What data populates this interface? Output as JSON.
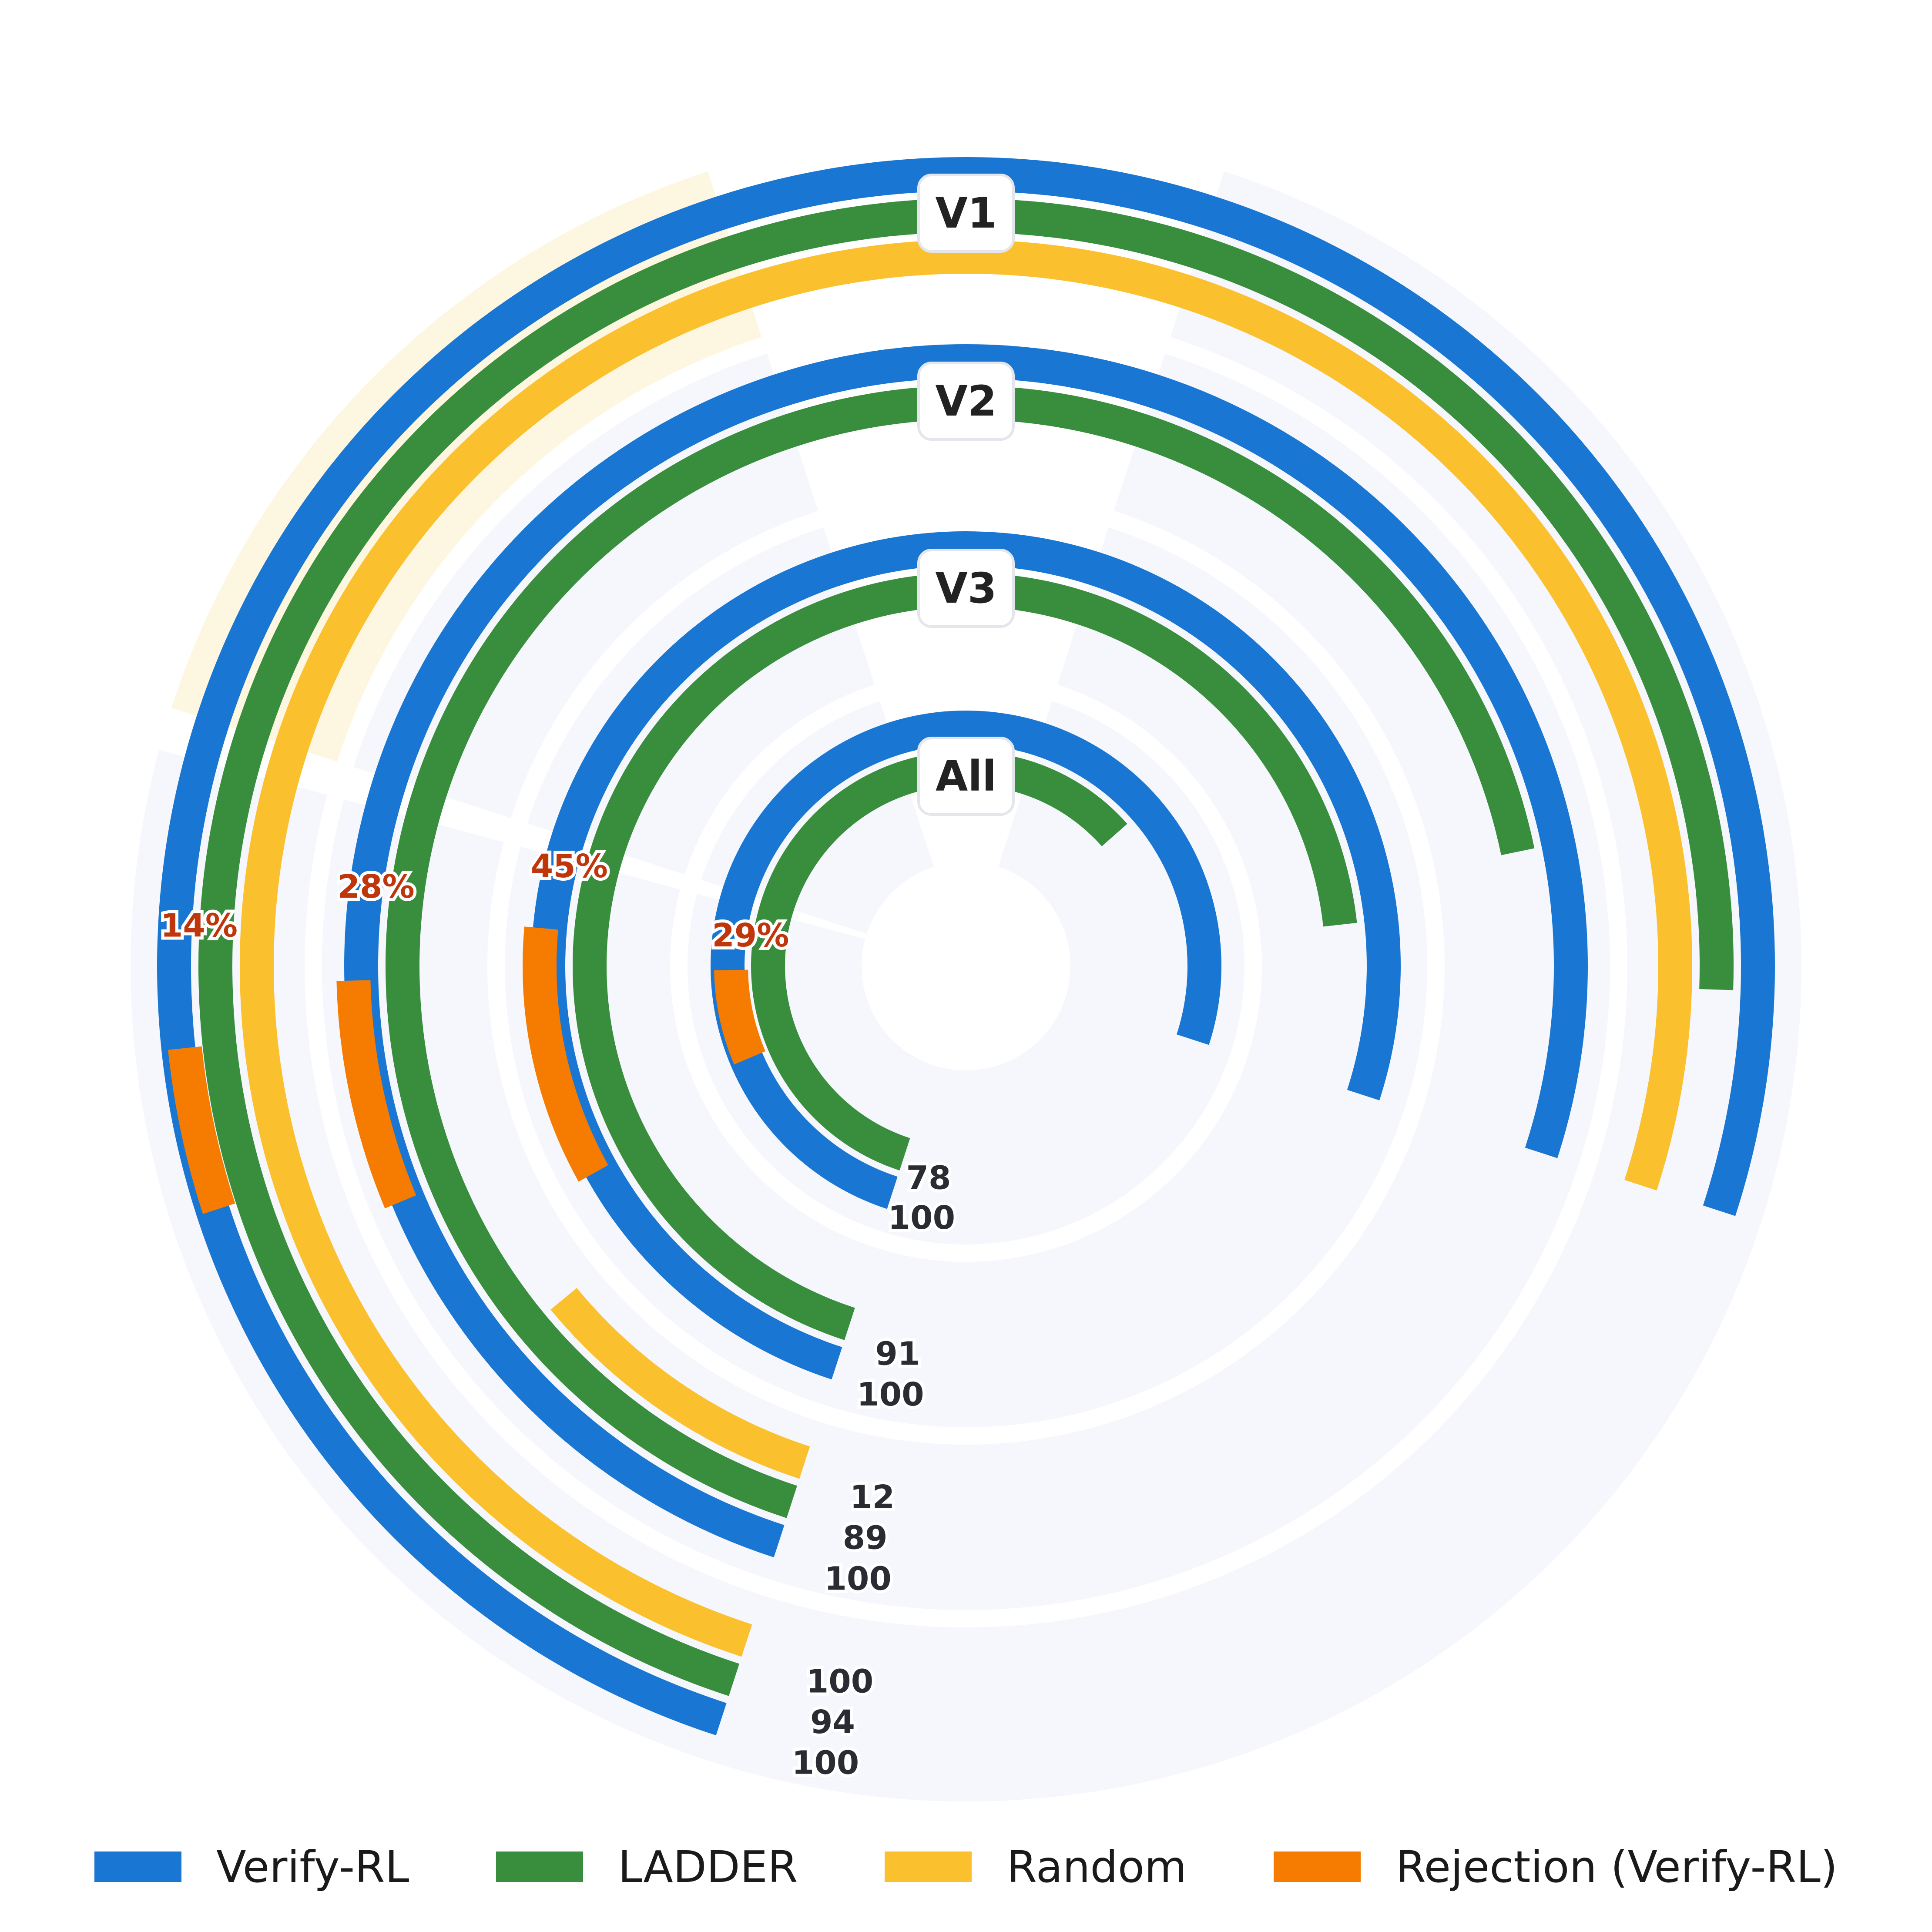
{
  "chart_data": {
    "type": "radial_bar",
    "groups": [
      "V1",
      "V2",
      "V3",
      "All"
    ],
    "value_range": [
      0,
      100
    ],
    "series": [
      {
        "name": "Verify-RL",
        "color": "#1976D2",
        "values": [
          100,
          100,
          100,
          100
        ]
      },
      {
        "name": "LADDER",
        "color": "#388E3C",
        "values": [
          94,
          89,
          91,
          78
        ]
      },
      {
        "name": "Random",
        "color": "#FBC02D",
        "values": [
          100,
          12,
          null,
          null
        ]
      }
    ],
    "rejection": {
      "name": "Rejection (Verify-RL)",
      "color": "#F57C00",
      "values": [
        "14%",
        "28%",
        "45%",
        "29%"
      ]
    },
    "value_labels": {
      "Verify-RL": [
        "100",
        "100",
        "100",
        "100"
      ],
      "LADDER": [
        "94",
        "89",
        "91",
        "78"
      ],
      "Random": [
        "100",
        "12",
        "",
        ""
      ]
    },
    "colors": {
      "panel_background": "#F5F7FC",
      "highlight_background": "#FDF6E0",
      "label_text": "#2B2B33",
      "rejection_text": "#BF360C"
    }
  }
}
